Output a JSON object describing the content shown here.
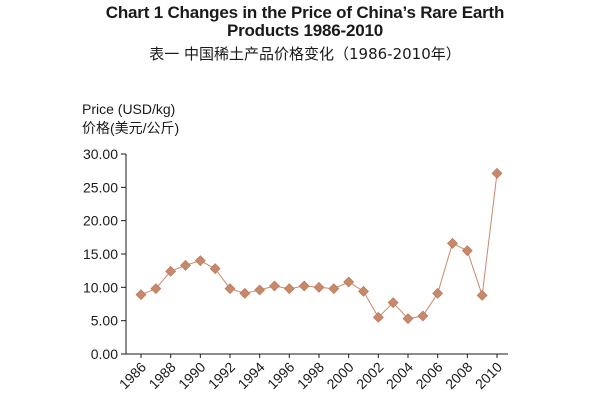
{
  "title": {
    "english": "Chart 1 Changes in the Price of China’s Rare Earth Products 1986-2010",
    "chinese": "表一  中国稀土产品价格变化（1986-2010年）"
  },
  "chart_data": {
    "type": "line",
    "ylabel": "Price (USD/kg)",
    "ylabel_cn": "价格(美元/公斤)",
    "ylim": [
      0,
      30
    ],
    "yticks": [
      "0.00",
      "5.00",
      "10.00",
      "15.00",
      "20.00",
      "25.00",
      "30.00"
    ],
    "xticks": [
      "1986",
      "1988",
      "1990",
      "1992",
      "1994",
      "1996",
      "1998",
      "2000",
      "2002",
      "2004",
      "2006",
      "2008",
      "2010"
    ],
    "marker": "diamond",
    "color": "#c8896a",
    "grid": false,
    "series": [
      {
        "x": [
          1986,
          1987,
          1988,
          1989,
          1990,
          1991,
          1992,
          1993,
          1994,
          1995,
          1996,
          1997,
          1998,
          1999,
          2000,
          2001,
          2002,
          2003,
          2004,
          2005,
          2006,
          2007,
          2008,
          2009,
          2010
        ],
        "values": [
          8.9,
          9.8,
          12.4,
          13.3,
          14.0,
          12.8,
          9.8,
          9.1,
          9.6,
          10.2,
          9.8,
          10.2,
          10.0,
          9.8,
          10.8,
          9.4,
          5.5,
          7.7,
          5.3,
          5.7,
          9.1,
          16.6,
          15.5,
          8.8,
          27.1
        ]
      }
    ]
  }
}
